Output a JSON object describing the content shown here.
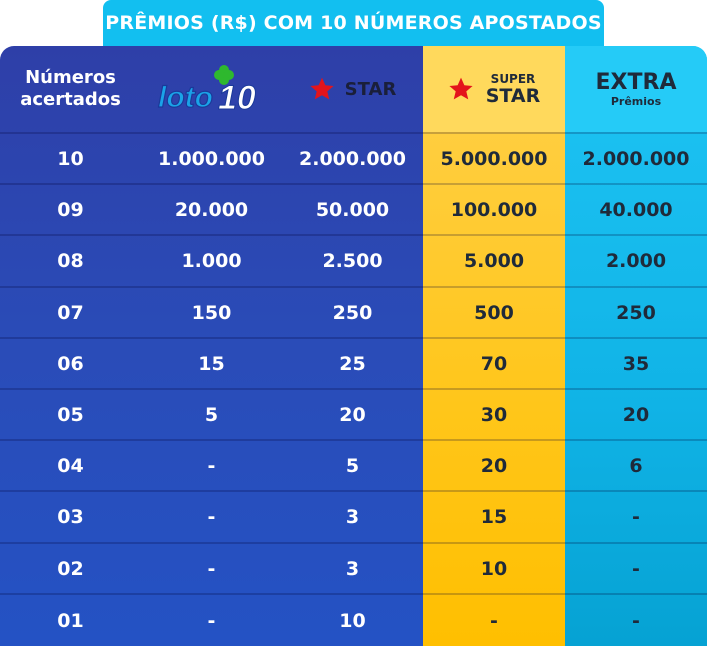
{
  "title": "PRÊMIOS (R$) COM 10 NÚMEROS APOSTADOS",
  "headers": {
    "numbers": "Números acertados",
    "loto": "Loto10",
    "star": "STAR",
    "super_small": "SUPER",
    "super_big": "STAR",
    "extra_big": "EXTRA",
    "extra_small": "Prêmios"
  },
  "rows": [
    {
      "n": "10",
      "loto": "1.000.000",
      "star": "2.000.000",
      "super": "5.000.000",
      "extra": "2.000.000"
    },
    {
      "n": "09",
      "loto": "20.000",
      "star": "50.000",
      "super": "100.000",
      "extra": "40.000"
    },
    {
      "n": "08",
      "loto": "1.000",
      "star": "2.500",
      "super": "5.000",
      "extra": "2.000"
    },
    {
      "n": "07",
      "loto": "150",
      "star": "250",
      "super": "500",
      "extra": "250"
    },
    {
      "n": "06",
      "loto": "15",
      "star": "25",
      "super": "70",
      "extra": "35"
    },
    {
      "n": "05",
      "loto": "5",
      "star": "20",
      "super": "30",
      "extra": "20"
    },
    {
      "n": "04",
      "loto": "-",
      "star": "5",
      "super": "20",
      "extra": "6"
    },
    {
      "n": "03",
      "loto": "-",
      "star": "3",
      "super": "15",
      "extra": "-"
    },
    {
      "n": "02",
      "loto": "-",
      "star": "3",
      "super": "10",
      "extra": "-"
    },
    {
      "n": "01",
      "loto": "-",
      "star": "10",
      "super": "-",
      "extra": "-"
    }
  ],
  "colors": {
    "header_tab": "#12bff0",
    "blue": "#2a4cb8",
    "gold": "#ffc61a",
    "cyan": "#10b3e6",
    "star_red": "#e3141b"
  }
}
